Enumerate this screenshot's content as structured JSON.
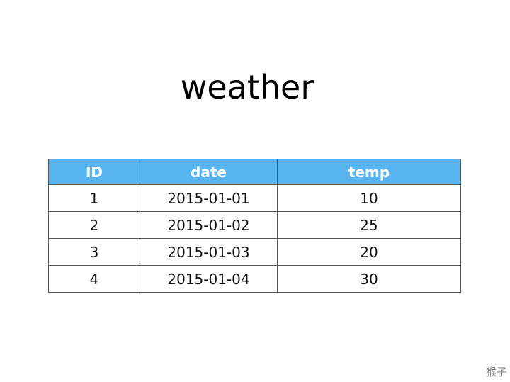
{
  "title": "weather",
  "table": {
    "header_color": "#57b4ef",
    "columns": [
      "ID",
      "date",
      "temp"
    ],
    "rows": [
      [
        "1",
        "2015-01-01",
        "10"
      ],
      [
        "2",
        "2015-01-02",
        "25"
      ],
      [
        "3",
        "2015-01-03",
        "20"
      ],
      [
        "4",
        "2015-01-04",
        "30"
      ]
    ]
  },
  "watermark": "猴子"
}
